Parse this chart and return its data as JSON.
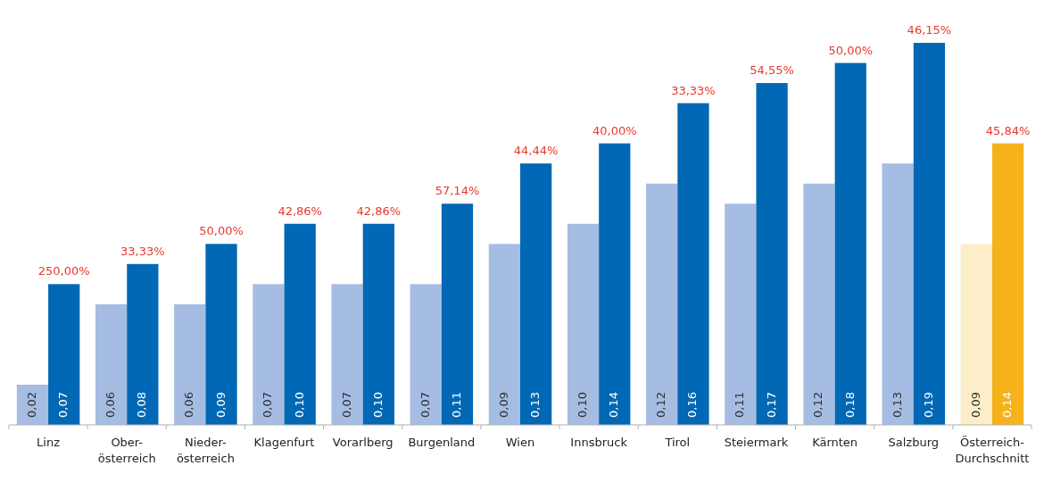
{
  "chart_data": {
    "type": "bar",
    "categories": [
      "Linz",
      "Ober-österreich",
      "Nieder-österreich",
      "Klagenfurt",
      "Vorarlberg",
      "Burgenland",
      "Wien",
      "Innsbruck",
      "Tirol",
      "Steiermark",
      "Kärnten",
      "Salzburg",
      "Österreich-Durchschnitt"
    ],
    "series": [
      {
        "colors": [
          "#a6bde3",
          "#a6bde3",
          "#a6bde3",
          "#a6bde3",
          "#a6bde3",
          "#a6bde3",
          "#a6bde3",
          "#a6bde3",
          "#a6bde3",
          "#a6bde3",
          "#a6bde3",
          "#a6bde3",
          "#fdedc8"
        ],
        "values": [
          0.02,
          0.06,
          0.06,
          0.07,
          0.07,
          0.07,
          0.09,
          0.1,
          0.12,
          0.11,
          0.12,
          0.13,
          0.09
        ],
        "value_labels": [
          "0,02",
          "0,06",
          "0,06",
          "0,07",
          "0,07",
          "0,07",
          "0,09",
          "0,10",
          "0,12",
          "0,11",
          "0,12",
          "0,13",
          "0,09"
        ]
      },
      {
        "colors": [
          "#0068b4",
          "#0068b4",
          "#0068b4",
          "#0068b4",
          "#0068b4",
          "#0068b4",
          "#0068b4",
          "#0068b4",
          "#0068b4",
          "#0068b4",
          "#0068b4",
          "#0068b4",
          "#f5b21a"
        ],
        "values": [
          0.07,
          0.08,
          0.09,
          0.1,
          0.1,
          0.11,
          0.13,
          0.14,
          0.16,
          0.17,
          0.18,
          0.19,
          0.14
        ],
        "value_labels": [
          "0,07",
          "0,08",
          "0,09",
          "0,10",
          "0,10",
          "0,11",
          "0,13",
          "0,14",
          "0,16",
          "0,17",
          "0,18",
          "0,19",
          "0,14"
        ]
      }
    ],
    "annotations": [
      {
        "text": "250,00%",
        "x": "Linz",
        "y": 0.07
      },
      {
        "text": "33,33%",
        "x": "Ober-österreich",
        "y": 0.08
      },
      {
        "text": "50,00%",
        "x": "Nieder-österreich",
        "y": 0.09
      },
      {
        "text": "42,86%",
        "x": "Klagenfurt",
        "y": 0.1
      },
      {
        "text": "42,86%",
        "x": "Vorarlberg",
        "y": 0.1
      },
      {
        "text": "57,14%",
        "x": "Burgenland",
        "y": 0.11
      },
      {
        "text": "44,44%",
        "x": "Wien",
        "y": 0.13
      },
      {
        "text": "40,00%",
        "x": "Innsbruck",
        "y": 0.14
      },
      {
        "text": "33,33%",
        "x": "Tirol",
        "y": 0.16
      },
      {
        "text": "54,55%",
        "x": "Steiermark",
        "y": 0.17
      },
      {
        "text": "50,00%",
        "x": "Kärnten",
        "y": 0.18
      },
      {
        "text": "46,15%",
        "x": "Salzburg",
        "y": 0.19
      },
      {
        "text": "45,84%",
        "x": "Österreich-Durchschnitt",
        "y": 0.14
      }
    ]
  }
}
